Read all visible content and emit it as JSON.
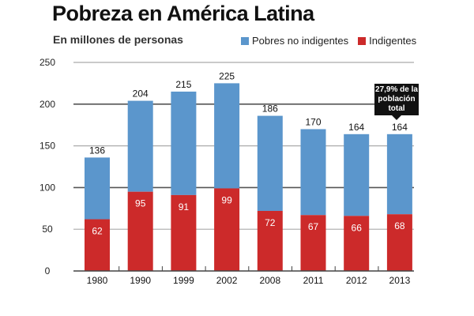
{
  "chart_data": {
    "type": "bar",
    "stacked": true,
    "title": "Pobreza en América Latina",
    "subtitle": "En millones de personas",
    "categories": [
      "1980",
      "1990",
      "1999",
      "2002",
      "2008",
      "2011",
      "2012",
      "2013"
    ],
    "totals": [
      136,
      204,
      215,
      225,
      186,
      170,
      164,
      164
    ],
    "series": [
      {
        "name": "Indigentes",
        "color": "#cc2a2a",
        "values": [
          62,
          95,
          91,
          99,
          72,
          67,
          66,
          68
        ]
      },
      {
        "name": "Pobres no indigentes",
        "color": "#5b96cc",
        "values": [
          74,
          109,
          124,
          126,
          114,
          103,
          98,
          96
        ]
      }
    ],
    "legend": [
      "Pobres no indigentes",
      "Indigentes"
    ],
    "legend_position": "top-right",
    "ylim": [
      0,
      250
    ],
    "yticks": [
      0,
      50,
      100,
      150,
      200,
      250
    ],
    "grid": true,
    "annotation": {
      "category": "2013",
      "lines": [
        "27,9% de la",
        "población",
        "total"
      ]
    }
  }
}
